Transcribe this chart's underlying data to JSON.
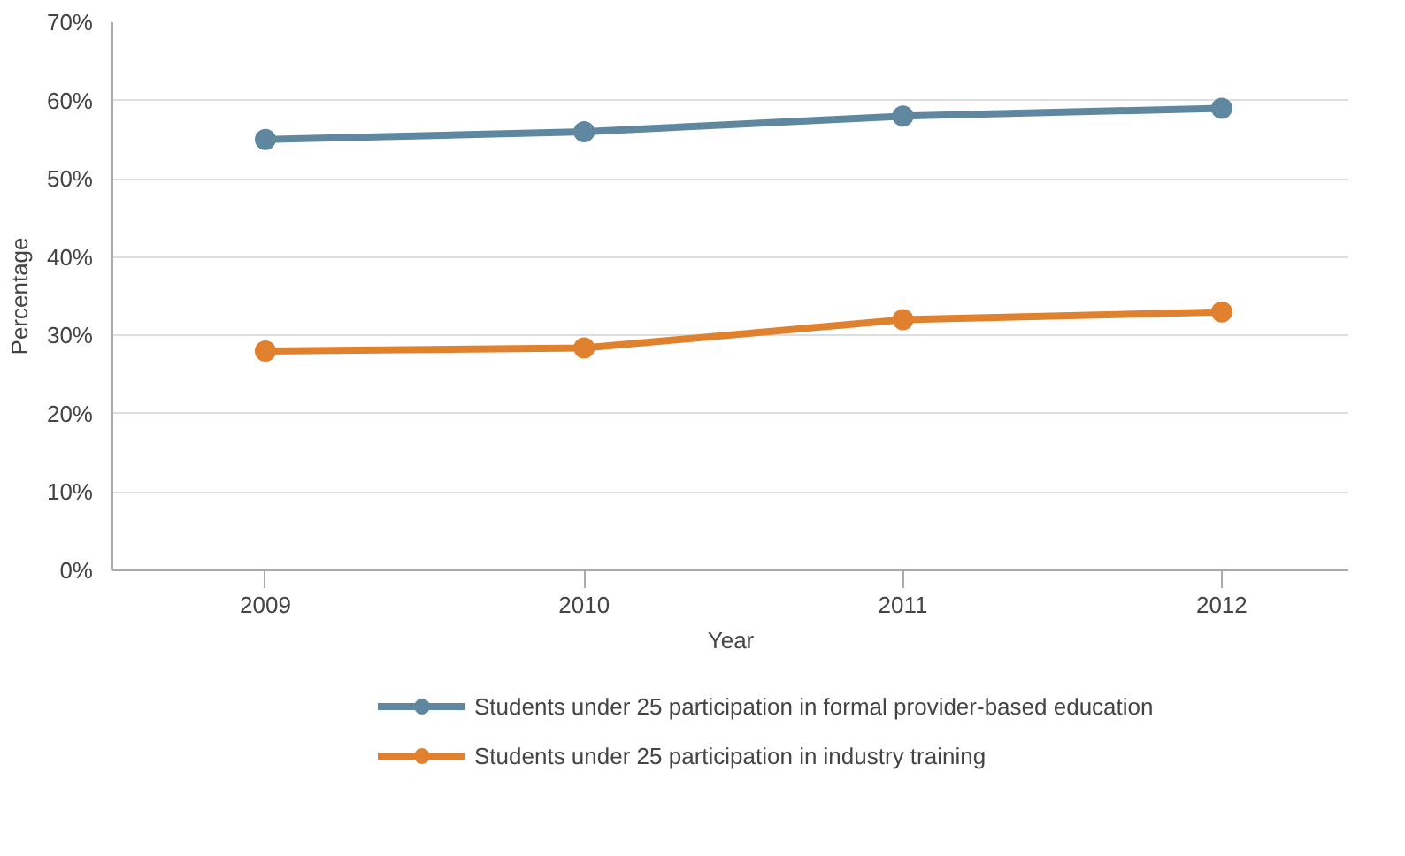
{
  "chart_data": {
    "type": "line",
    "xlabel": "Year",
    "ylabel": "Percentage",
    "categories": [
      "2009",
      "2010",
      "2011",
      "2012"
    ],
    "series": [
      {
        "name": "Students under 25 participation in formal provider-based education",
        "color": "#5f87a0",
        "values": [
          55,
          56,
          58,
          59
        ]
      },
      {
        "name": "Students under 25 participation in industry training",
        "color": "#e0812f",
        "values": [
          28,
          28.4,
          32,
          33
        ]
      }
    ],
    "ylim": [
      0,
      70
    ],
    "yticks": [
      {
        "value": 0,
        "label": "0%"
      },
      {
        "value": 10,
        "label": "10%"
      },
      {
        "value": 20,
        "label": "20%"
      },
      {
        "value": 30,
        "label": "30%"
      },
      {
        "value": 40,
        "label": "40%"
      },
      {
        "value": 50,
        "label": "50%"
      },
      {
        "value": 60,
        "label": "60%"
      },
      {
        "value": 70,
        "label": "70%"
      }
    ],
    "grid": "y",
    "legend": "bottom",
    "marker": "circle",
    "line_style": "solid"
  }
}
